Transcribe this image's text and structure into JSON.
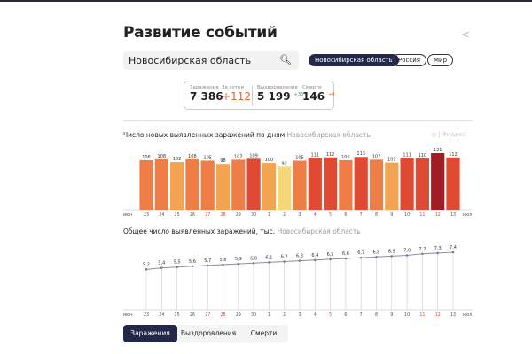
{
  "title": "Развитие событий",
  "search": {
    "value": "Новосибирская область"
  },
  "chips": [
    {
      "label": "Новосибирская область",
      "active": true
    },
    {
      "label": "Россия"
    },
    {
      "label": "Мир"
    }
  ],
  "stats": {
    "infections": {
      "label": "Заражения",
      "value": "7 386"
    },
    "daily": {
      "label": "За сутки",
      "value": "+112"
    },
    "recovered": {
      "label": "Выздоровления",
      "value": "5 199",
      "delta": "+35"
    },
    "deaths": {
      "label": "Смерти",
      "value": "146",
      "delta": "+4"
    }
  },
  "watermark": "Яндекс",
  "colors": {
    "accent": "#23284a",
    "daily": "#e8622c",
    "recovered_delta": "#2fa34a",
    "deaths_delta": "#e8622c",
    "weekend": "#e0433a"
  },
  "chart_data": [
    {
      "type": "bar",
      "title": "Число новых выявленных заражений по дням",
      "subtitle": "Новосибирская область",
      "month_start": "июн",
      "month_end": "июл",
      "categories": [
        "23",
        "24",
        "25",
        "26",
        "27",
        "28",
        "29",
        "30",
        "1",
        "2",
        "3",
        "4",
        "5",
        "6",
        "7",
        "8",
        "9",
        "10",
        "11",
        "12",
        "13"
      ],
      "weekend": [
        "27",
        "28",
        "4",
        "5",
        "11",
        "12"
      ],
      "values": [
        106,
        108,
        102,
        108,
        105,
        98,
        107,
        109,
        100,
        92,
        105,
        111,
        112,
        106,
        113,
        107,
        101,
        111,
        110,
        121,
        112
      ]
    },
    {
      "type": "line",
      "title": "Общее число выявленных заражений, тыс.",
      "subtitle": "Новосибирская область",
      "month_start": "июн",
      "month_end": "июл",
      "categories": [
        "23",
        "24",
        "25",
        "26",
        "27",
        "28",
        "29",
        "30",
        "1",
        "2",
        "3",
        "4",
        "5",
        "6",
        "7",
        "8",
        "9",
        "10",
        "11",
        "12",
        "13"
      ],
      "values": [
        5.2,
        5.4,
        5.5,
        5.6,
        5.7,
        5.8,
        5.9,
        6.0,
        6.1,
        6.2,
        6.3,
        6.4,
        6.5,
        6.6,
        6.7,
        6.8,
        6.9,
        7.0,
        7.2,
        7.3,
        7.4
      ]
    }
  ],
  "tabs": [
    {
      "label": "Заражения",
      "active": true
    },
    {
      "label": "Выздоровления"
    },
    {
      "label": "Смерти"
    }
  ]
}
